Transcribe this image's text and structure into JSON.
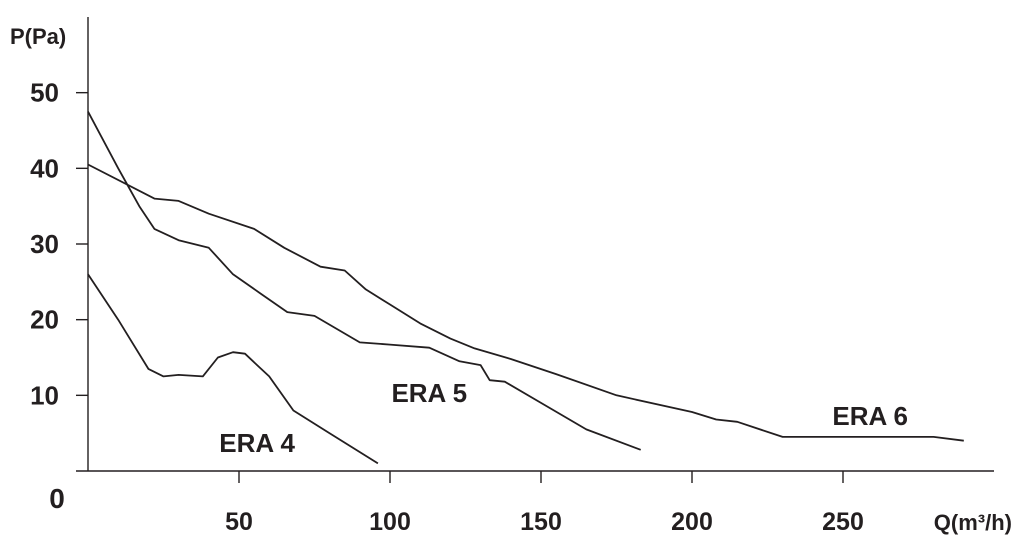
{
  "chart_data": {
    "type": "line",
    "ylabel": "P(Pa)",
    "xlabel": "Q(m³/h)",
    "origin_label": "0",
    "xlim": [
      0,
      300
    ],
    "ylim": [
      0,
      60
    ],
    "xticks": [
      50,
      100,
      150,
      200,
      250
    ],
    "yticks": [
      10,
      20,
      30,
      40,
      50
    ],
    "grid": false,
    "series": [
      {
        "name": "ERA 4",
        "x": [
          0,
          10,
          20,
          25,
          30,
          38,
          43,
          48,
          52,
          56,
          60,
          68,
          80,
          96
        ],
        "y": [
          26,
          20,
          13.5,
          12.5,
          12.7,
          12.5,
          15,
          15.7,
          15.5,
          14,
          12.5,
          8,
          5,
          1
        ]
      },
      {
        "name": "ERA 5",
        "x": [
          0,
          10,
          17,
          22,
          30,
          40,
          48,
          57,
          66,
          75,
          90,
          100,
          113,
          123,
          130,
          133,
          138,
          150,
          165,
          183
        ],
        "y": [
          47.5,
          40,
          35,
          32,
          30.5,
          29.5,
          26,
          23.5,
          21,
          20.5,
          17,
          16.7,
          16.3,
          14.5,
          14,
          12,
          11.8,
          9,
          5.5,
          2.8
        ]
      },
      {
        "name": "ERA 6",
        "x": [
          0,
          22,
          30,
          40,
          55,
          65,
          77,
          85,
          92,
          100,
          110,
          120,
          128,
          140,
          155,
          175,
          200,
          208,
          215,
          230,
          280,
          290
        ],
        "y": [
          40.5,
          36,
          35.7,
          34,
          32,
          29.5,
          27,
          26.5,
          24,
          22,
          19.5,
          17.5,
          16.2,
          14.8,
          12.8,
          10,
          7.8,
          6.8,
          6.5,
          4.5,
          4.5,
          4
        ]
      }
    ],
    "annotations": [
      {
        "text": "ERA 4",
        "x": 56,
        "y": 3.7
      },
      {
        "text": "ERA 5",
        "x": 113,
        "y": 10.3
      },
      {
        "text": "ERA 6",
        "x": 259,
        "y": 7.3
      }
    ]
  }
}
